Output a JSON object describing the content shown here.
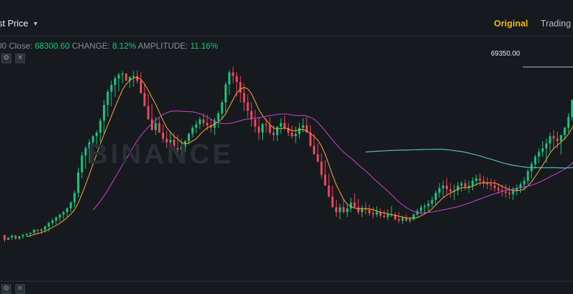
{
  "header": {
    "price_type": "ast Price",
    "tabs": [
      {
        "label": "Original",
        "active": true
      },
      {
        "label": "Trading",
        "active": false
      }
    ]
  },
  "info": {
    "lead": "00",
    "close_label": "Close:",
    "close_value": "68300.60",
    "change_label": "CHANGE:",
    "change_value": "8.12%",
    "amplitude_label": "AMPLITUDE:",
    "amplitude_value": "11.16%"
  },
  "colors": {
    "background": "#161a1e",
    "up": "#0ecb81",
    "down": "#f6465d",
    "accent": "#f0b90b",
    "ma_fast": "#f0a030",
    "ma_mid": "#c040c8",
    "ma_slow": "#5fc8d0"
  },
  "watermark": "BINANCE",
  "price_marker": "69350.00",
  "chart_data": {
    "type": "candlestick",
    "candles": [
      [
        66,
        66,
        55
      ],
      [
        58,
        62,
        58
      ],
      [
        62,
        67,
        58
      ],
      [
        65,
        66,
        58
      ],
      [
        60,
        64,
        58
      ],
      [
        64,
        68,
        60
      ],
      [
        66,
        69,
        63
      ],
      [
        68,
        70,
        62
      ],
      [
        70,
        75,
        68
      ],
      [
        75,
        75,
        68
      ],
      [
        73,
        77,
        68
      ],
      [
        75,
        82,
        70
      ],
      [
        80,
        88,
        72
      ],
      [
        86,
        93,
        82
      ],
      [
        90,
        97,
        84
      ],
      [
        95,
        101,
        88
      ],
      [
        100,
        106,
        92
      ],
      [
        104,
        112,
        96
      ],
      [
        110,
        122,
        104
      ],
      [
        120,
        140,
        112
      ],
      [
        136,
        178,
        128
      ],
      [
        170,
        204,
        160
      ],
      [
        198,
        214,
        176
      ],
      [
        210,
        225,
        186
      ],
      [
        220,
        232,
        198
      ],
      [
        230,
        240,
        210
      ],
      [
        236,
        260,
        220
      ],
      [
        256,
        290,
        235
      ],
      [
        282,
        308,
        262
      ],
      [
        304,
        322,
        280
      ],
      [
        315,
        330,
        295
      ],
      [
        326,
        335,
        305
      ],
      [
        332,
        338,
        318
      ],
      [
        334,
        335,
        330
      ],
      [
        322,
        330,
        310
      ],
      [
        328,
        338,
        312
      ],
      [
        330,
        339,
        318
      ],
      [
        322,
        336,
        300
      ],
      [
        302,
        316,
        286
      ],
      [
        280,
        300,
        262
      ],
      [
        258,
        284,
        240
      ],
      [
        240,
        262,
        232
      ],
      [
        252,
        260,
        236
      ],
      [
        236,
        250,
        220
      ],
      [
        226,
        240,
        210
      ],
      [
        220,
        238,
        212
      ],
      [
        224,
        236,
        210
      ],
      [
        210,
        232,
        200
      ],
      [
        208,
        226,
        196
      ],
      [
        212,
        224,
        204
      ],
      [
        222,
        236,
        216
      ],
      [
        234,
        248,
        228
      ],
      [
        244,
        256,
        235
      ],
      [
        250,
        262,
        242
      ],
      [
        258,
        268,
        246
      ],
      [
        252,
        266,
        240
      ],
      [
        248,
        258,
        236
      ],
      [
        244,
        260,
        232
      ],
      [
        256,
        272,
        244
      ],
      [
        268,
        290,
        258
      ],
      [
        286,
        320,
        270
      ],
      [
        316,
        340,
        298
      ],
      [
        336,
        345,
        318
      ],
      [
        330,
        336,
        296
      ],
      [
        320,
        330,
        286
      ],
      [
        302,
        318,
        272
      ],
      [
        286,
        300,
        260
      ],
      [
        272,
        286,
        246
      ],
      [
        258,
        274,
        236
      ],
      [
        246,
        262,
        224
      ],
      [
        236,
        252,
        224
      ],
      [
        250,
        260,
        236
      ],
      [
        248,
        262,
        232
      ],
      [
        236,
        248,
        222
      ],
      [
        232,
        245,
        222
      ],
      [
        246,
        260,
        234
      ],
      [
        252,
        264,
        240
      ],
      [
        244,
        252,
        230
      ],
      [
        236,
        248,
        226
      ],
      [
        230,
        246,
        218
      ],
      [
        234,
        252,
        226
      ],
      [
        244,
        260,
        236
      ],
      [
        248,
        262,
        240
      ],
      [
        236,
        248,
        212
      ],
      [
        214,
        234,
        200
      ],
      [
        200,
        218,
        186
      ],
      [
        188,
        202,
        160
      ],
      [
        166,
        190,
        150
      ],
      [
        148,
        168,
        128
      ],
      [
        130,
        148,
        114
      ],
      [
        112,
        124,
        96
      ],
      [
        104,
        118,
        92
      ],
      [
        112,
        126,
        102
      ],
      [
        104,
        116,
        96
      ],
      [
        110,
        128,
        104
      ],
      [
        120,
        135,
        110
      ],
      [
        112,
        126,
        100
      ],
      [
        104,
        116,
        96
      ],
      [
        110,
        120,
        100
      ],
      [
        108,
        116,
        98
      ],
      [
        102,
        112,
        94
      ],
      [
        100,
        114,
        96
      ],
      [
        104,
        110,
        94
      ],
      [
        98,
        108,
        94
      ],
      [
        96,
        108,
        90
      ],
      [
        100,
        114,
        96
      ],
      [
        100,
        104,
        90
      ],
      [
        92,
        104,
        86
      ],
      [
        90,
        98,
        84
      ],
      [
        94,
        100,
        88
      ],
      [
        90,
        96,
        86
      ],
      [
        92,
        102,
        90
      ],
      [
        100,
        110,
        96
      ],
      [
        106,
        116,
        100
      ],
      [
        112,
        118,
        100
      ],
      [
        114,
        124,
        106
      ],
      [
        118,
        130,
        112
      ],
      [
        124,
        140,
        116
      ],
      [
        136,
        152,
        128
      ],
      [
        144,
        156,
        128
      ],
      [
        148,
        160,
        132
      ],
      [
        142,
        152,
        128
      ],
      [
        138,
        150,
        124
      ],
      [
        140,
        154,
        132
      ],
      [
        148,
        156,
        138
      ],
      [
        152,
        158,
        140
      ],
      [
        146,
        156,
        136
      ],
      [
        148,
        162,
        140
      ],
      [
        156,
        166,
        148
      ],
      [
        160,
        168,
        148
      ],
      [
        156,
        164,
        144
      ],
      [
        152,
        162,
        142
      ],
      [
        150,
        160,
        140
      ],
      [
        148,
        158,
        138
      ],
      [
        144,
        152,
        134
      ],
      [
        140,
        150,
        130
      ],
      [
        138,
        150,
        128
      ],
      [
        136,
        148,
        126
      ],
      [
        134,
        146,
        124
      ],
      [
        140,
        150,
        132
      ],
      [
        144,
        154,
        136
      ],
      [
        150,
        162,
        140
      ],
      [
        156,
        176,
        150
      ],
      [
        172,
        188,
        160
      ],
      [
        184,
        200,
        176
      ],
      [
        196,
        210,
        186
      ],
      [
        204,
        222,
        196
      ],
      [
        210,
        226,
        186
      ],
      [
        218,
        236,
        204
      ],
      [
        230,
        240,
        208
      ],
      [
        226,
        238,
        210
      ],
      [
        222,
        232,
        200
      ],
      [
        232,
        246,
        224
      ],
      [
        244,
        268,
        236
      ],
      [
        262,
        292,
        256
      ],
      [
        290,
        340,
        282
      ],
      [
        326,
        345,
        318
      ]
    ],
    "y_range": [
      50,
      350
    ]
  }
}
